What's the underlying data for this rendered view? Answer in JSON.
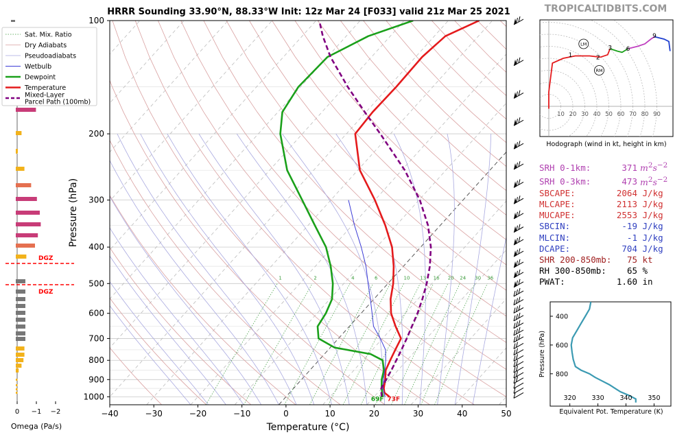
{
  "brand": "TROPICALTIDBITS.COM",
  "title": "HRRR Sounding 33.90°N, 88.33°W Init: 12z Mar 24 [F033] valid 21z Mar 25 2021",
  "colors": {
    "temperature": "#e41a1c",
    "dewpoint": "#1aa01a",
    "parcel": "#800080",
    "wetbulb": "#3b3bd6",
    "dry_adiabat": "#d9a0a0",
    "moist_adiabat": "#a9a9e0",
    "mixing_ratio": "#3a9a3a",
    "hodo_red": "#e41a1c",
    "hodo_green": "#1aa01a",
    "hodo_magenta": "#c040c0",
    "hodo_blue": "#2040d0",
    "omega_pos": "#f2b21b",
    "omega_mid": "#e57050",
    "omega_neg": "#c83c78",
    "omega_gray": "#777777",
    "dgz": "#ff0000",
    "theta_e": "#3b9ab2"
  },
  "legend": {
    "items": [
      "Sat. Mix. Ratio",
      "Dry Adiabats",
      "Pseudoadiabats",
      "Wetbulb",
      "Dewpoint",
      "Temperature",
      "Mixed-Layer\nParcel Path (100mb)"
    ]
  },
  "chart_data": [
    {
      "type": "line",
      "name": "skew-t",
      "xlabel": "Temperature (°C)",
      "ylabel": "Pressure (hPa)",
      "xlim": [
        -40,
        50
      ],
      "ylim": [
        1050,
        100
      ],
      "y_scale": "log",
      "x_ticks": [
        -40,
        -30,
        -20,
        -10,
        0,
        10,
        20,
        30,
        40,
        50
      ],
      "x_tick_labels": [
        "−40",
        "−30",
        "−20",
        "−10",
        "0",
        "10",
        "20",
        "30",
        "40",
        "50"
      ],
      "y_ticks": [
        100,
        200,
        300,
        400,
        500,
        600,
        700,
        800,
        900,
        1000
      ],
      "mixing_ratio_labels": [
        "1",
        "2",
        "4",
        "6",
        "8",
        "10",
        "13",
        "16",
        "20",
        "24",
        "30",
        "36"
      ],
      "surface_labels": {
        "dewpoint": "69F",
        "temperature": "73F"
      },
      "series": [
        {
          "name": "Temperature",
          "points": [
            [
              1000,
              23.5
            ],
            [
              975,
              21.5
            ],
            [
              950,
              20.5
            ],
            [
              900,
              19.0
            ],
            [
              850,
              17.2
            ],
            [
              800,
              16.2
            ],
            [
              750,
              15.2
            ],
            [
              700,
              14.2
            ],
            [
              650,
              10.5
            ],
            [
              600,
              6.8
            ],
            [
              550,
              3.8
            ],
            [
              500,
              1.2
            ],
            [
              450,
              -2.2
            ],
            [
              400,
              -6.5
            ],
            [
              350,
              -12.5
            ],
            [
              300,
              -20.0
            ],
            [
              250,
              -29.5
            ],
            [
              200,
              -38.0
            ],
            [
              175,
              -38.5
            ],
            [
              150,
              -38.3
            ],
            [
              125,
              -38.5
            ],
            [
              110,
              -37.5
            ],
            [
              100,
              -33.0
            ]
          ]
        },
        {
          "name": "Dewpoint",
          "points": [
            [
              1000,
              22.0
            ],
            [
              975,
              21.0
            ],
            [
              950,
              20.0
            ],
            [
              900,
              18.2
            ],
            [
              850,
              16.8
            ],
            [
              800,
              14.5
            ],
            [
              770,
              10.5
            ],
            [
              740,
              1.0
            ],
            [
              700,
              -4.5
            ],
            [
              650,
              -7.2
            ],
            [
              600,
              -8.0
            ],
            [
              550,
              -9.5
            ],
            [
              500,
              -12.5
            ],
            [
              450,
              -16.5
            ],
            [
              400,
              -21.5
            ],
            [
              350,
              -28.5
            ],
            [
              300,
              -36.5
            ],
            [
              250,
              -46.0
            ],
            [
              200,
              -55.0
            ],
            [
              175,
              -59.0
            ],
            [
              150,
              -60.5
            ],
            [
              125,
              -60.0
            ],
            [
              110,
              -55.0
            ],
            [
              100,
              -48.0
            ]
          ]
        },
        {
          "name": "Wetbulb",
          "points": [
            [
              1000,
              22.5
            ],
            [
              950,
              20.3
            ],
            [
              900,
              18.6
            ],
            [
              850,
              17.0
            ],
            [
              800,
              15.2
            ],
            [
              750,
              13.0
            ],
            [
              700,
              9.5
            ],
            [
              650,
              5.5
            ],
            [
              600,
              2.5
            ],
            [
              550,
              -0.8
            ],
            [
              500,
              -4.5
            ],
            [
              450,
              -8.5
            ],
            [
              400,
              -13.5
            ],
            [
              350,
              -19.5
            ],
            [
              300,
              -26.0
            ]
          ]
        },
        {
          "name": "Mixed-Layer Parcel Path (100mb)",
          "points": [
            [
              1000,
              21.7
            ],
            [
              950,
              19.9
            ],
            [
              900,
              19.2
            ],
            [
              850,
              18.5
            ],
            [
              800,
              17.6
            ],
            [
              750,
              16.6
            ],
            [
              700,
              15.5
            ],
            [
              650,
              14.2
            ],
            [
              600,
              12.8
            ],
            [
              550,
              11.0
            ],
            [
              500,
              8.8
            ],
            [
              450,
              6.0
            ],
            [
              400,
              2.3
            ],
            [
              350,
              -2.8
            ],
            [
              300,
              -9.8
            ],
            [
              250,
              -19.3
            ],
            [
              200,
              -32.3
            ],
            [
              175,
              -40.3
            ],
            [
              150,
              -49.3
            ],
            [
              125,
              -59.3
            ],
            [
              110,
              -65.3
            ],
            [
              100,
              -69.3
            ]
          ]
        }
      ]
    },
    {
      "type": "line",
      "name": "hodograph",
      "xlabel": "Hodograph (wind in kt, height in km)",
      "rings": [
        "10",
        "20",
        "30",
        "40",
        "50",
        "60",
        "70",
        "80",
        "90"
      ],
      "height_labels": [
        "1",
        "2",
        "3",
        "6",
        "9"
      ],
      "markers": [
        "LM",
        "RM"
      ]
    },
    {
      "type": "line",
      "name": "theta-e",
      "xlabel": "Equivalent Pot. Temperature (K)",
      "ylabel": "Pressure (hPa)",
      "x_ticks": [
        320,
        330,
        340,
        350
      ],
      "y_ticks": [
        400,
        600,
        800
      ],
      "points": [
        [
          1000,
          343.5
        ],
        [
          975,
          343.5
        ],
        [
          950,
          341
        ],
        [
          925,
          338
        ],
        [
          900,
          336
        ],
        [
          875,
          334
        ],
        [
          850,
          331.5
        ],
        [
          825,
          329
        ],
        [
          800,
          327
        ],
        [
          775,
          324
        ],
        [
          750,
          322
        ],
        [
          700,
          321.2
        ],
        [
          650,
          320.8
        ],
        [
          600,
          320.5
        ],
        [
          550,
          321
        ],
        [
          500,
          322.5
        ],
        [
          450,
          324
        ],
        [
          400,
          325.5
        ],
        [
          350,
          327
        ],
        [
          300,
          327.5
        ]
      ]
    },
    {
      "type": "bar",
      "name": "omega",
      "xlabel": "Omega (Pa/s)",
      "x_ticks": [
        "0",
        "−1",
        "−2"
      ],
      "dgz_label": "DGZ"
    }
  ],
  "stats": [
    {
      "label": "SRH 0-1km:",
      "value": "371",
      "unit": "m2s-2"
    },
    {
      "label": "SRH 0-3km:",
      "value": "473",
      "unit": "m2s-2"
    },
    {
      "label": "SBCAPE:",
      "value": "2064",
      "unit": "J/kg"
    },
    {
      "label": "MLCAPE:",
      "value": "2113",
      "unit": "J/kg"
    },
    {
      "label": "MUCAPE:",
      "value": "2553",
      "unit": "J/kg"
    },
    {
      "label": "SBCIN:",
      "value": "-19",
      "unit": "J/kg"
    },
    {
      "label": "MLCIN:",
      "value": "-1",
      "unit": "J/kg"
    },
    {
      "label": "DCAPE:",
      "value": "704",
      "unit": "J/kg"
    },
    {
      "label": "SHR 200-850mb:",
      "value": "75",
      "unit": "kt"
    },
    {
      "label": "RH 300-850mb:",
      "value": "65",
      "unit": "%"
    },
    {
      "label": "PWAT:",
      "value": "1.60",
      "unit": "in"
    }
  ]
}
